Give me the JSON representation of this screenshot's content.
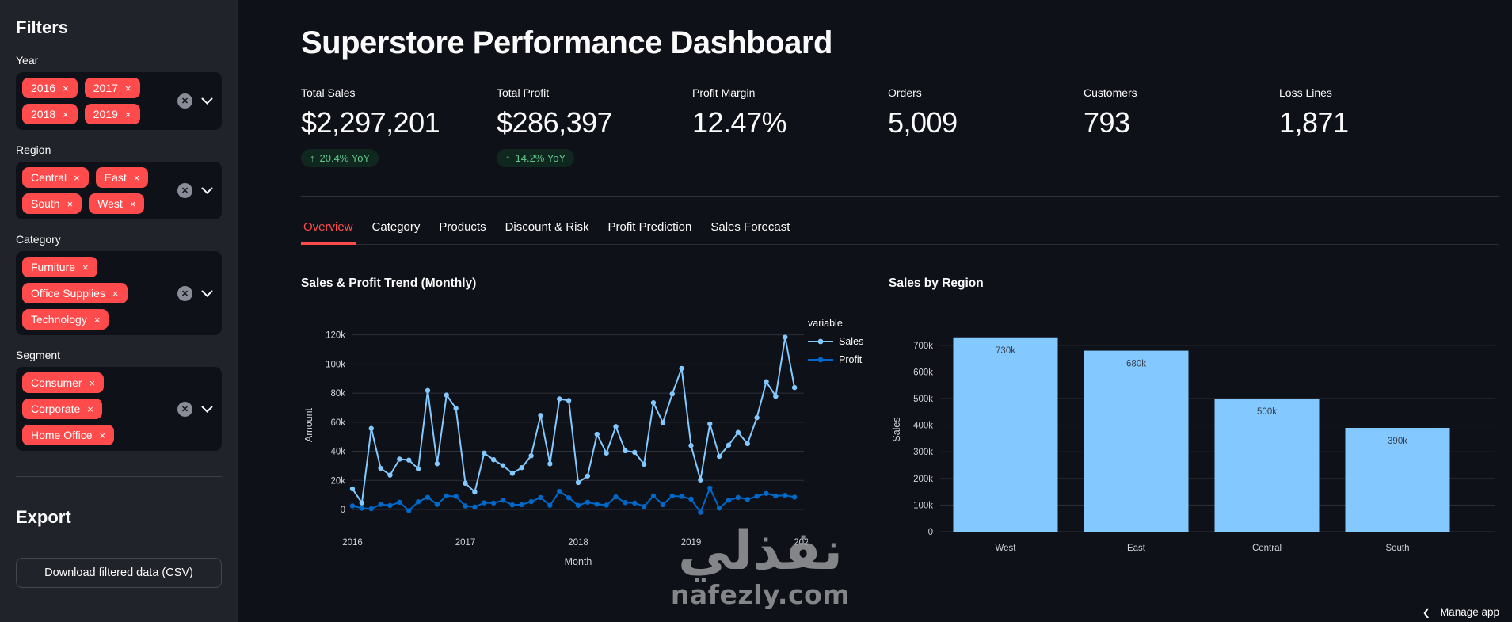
{
  "sidebar": {
    "title": "Filters",
    "filters": [
      {
        "label": "Year",
        "selected": [
          "2016",
          "2017",
          "2018",
          "2019"
        ],
        "per_row": 2
      },
      {
        "label": "Region",
        "selected": [
          "Central",
          "East",
          "South",
          "West"
        ],
        "per_row": 2
      },
      {
        "label": "Category",
        "selected": [
          "Furniture",
          "Office Supplies",
          "Technology"
        ],
        "per_row": 1
      },
      {
        "label": "Segment",
        "selected": [
          "Consumer",
          "Corporate",
          "Home Office"
        ],
        "per_row": 1
      }
    ],
    "export": {
      "title": "Export",
      "button_label": "Download filtered data (CSV)"
    }
  },
  "header": {
    "title": "Superstore Performance Dashboard"
  },
  "kpis": [
    {
      "label": "Total Sales",
      "value": "$2,297,201",
      "delta": "20.4% YoY",
      "delta_arrow": "↑"
    },
    {
      "label": "Total Profit",
      "value": "$286,397",
      "delta": "14.2% YoY",
      "delta_arrow": "↑"
    },
    {
      "label": "Profit Margin",
      "value": "12.47%"
    },
    {
      "label": "Orders",
      "value": "5,009"
    },
    {
      "label": "Customers",
      "value": "793"
    },
    {
      "label": "Loss Lines",
      "value": "1,871"
    }
  ],
  "tabs": [
    {
      "label": "Overview",
      "active": true
    },
    {
      "label": "Category",
      "active": false
    },
    {
      "label": "Products",
      "active": false
    },
    {
      "label": "Discount & Risk",
      "active": false
    },
    {
      "label": "Profit Prediction",
      "active": false
    },
    {
      "label": "Sales Forecast",
      "active": false
    }
  ],
  "colors": {
    "accent_red": "#ff4b4b",
    "sales_line": "#83c9ff",
    "profit_line": "#0068c9",
    "bar_fill": "#83c9ff",
    "delta_green": "#63c78c",
    "grid": "#2d3039",
    "tick_text": "#cfd2d9",
    "bar_label_text": "#3a4150"
  },
  "chart_data": [
    {
      "type": "line",
      "title": "Sales & Profit Trend (Monthly)",
      "xlabel": "Month",
      "ylabel": "Amount",
      "legend_title": "variable",
      "legend_position": "right",
      "grid": "horizontal",
      "x_range_note": "48 monthly points, Jan 2016 - Dec 2019",
      "x_tick_labels": [
        "2016",
        "2017",
        "2018",
        "2019",
        "2020"
      ],
      "x_tick_month_index": [
        0,
        12,
        24,
        36,
        48
      ],
      "y_tick_labels": [
        "0",
        "20k",
        "40k",
        "60k",
        "80k",
        "100k",
        "120k"
      ],
      "y_tick_values": [
        0,
        20000,
        40000,
        60000,
        80000,
        100000,
        120000
      ],
      "ylim": [
        -12000,
        128000
      ],
      "series": [
        {
          "name": "Sales",
          "color": "#83c9ff",
          "values": [
            14200,
            4520,
            55700,
            28300,
            23650,
            34600,
            33950,
            27900,
            81780,
            31450,
            78630,
            69550,
            18070,
            11950,
            38730,
            34200,
            30130,
            24800,
            28770,
            36900,
            64600,
            31400,
            75970,
            74920,
            18540,
            22980,
            51720,
            38750,
            56990,
            40340,
            39260,
            31120,
            73410,
            59690,
            79410,
            97000,
            43970,
            20300,
            58870,
            36520,
            44260,
            52980,
            45260,
            63120,
            87870,
            77780,
            118450,
            83830
          ]
        },
        {
          "name": "Profit",
          "color": "#0068c9",
          "values": [
            2450,
            860,
            500,
            3490,
            2740,
            4980,
            -840,
            5320,
            8330,
            3450,
            9290,
            8980,
            2430,
            1680,
            4590,
            4390,
            6360,
            3150,
            3290,
            5360,
            8210,
            2820,
            12470,
            8020,
            2820,
            5000,
            3610,
            2980,
            8660,
            4750,
            4430,
            2060,
            9330,
            3300,
            9220,
            8980,
            7140,
            -2000,
            14750,
            930,
            6340,
            8220,
            6950,
            9040,
            10990,
            9280,
            9690,
            8480
          ]
        }
      ]
    },
    {
      "type": "bar",
      "title": "Sales by Region",
      "xlabel": "",
      "ylabel": "Sales",
      "grid": "horizontal",
      "categories": [
        "West",
        "East",
        "Central",
        "South"
      ],
      "values": [
        730000,
        680000,
        500000,
        390000
      ],
      "bar_labels": [
        "730k",
        "680k",
        "500k",
        "390k"
      ],
      "y_tick_labels": [
        "0",
        "100k",
        "200k",
        "300k",
        "400k",
        "500k",
        "600k",
        "700k"
      ],
      "y_tick_values": [
        0,
        100000,
        200000,
        300000,
        400000,
        500000,
        600000,
        700000
      ],
      "ylim": [
        0,
        768000
      ]
    }
  ],
  "watermark": {
    "line1": "نفذلي",
    "line2": "nafezly.com"
  },
  "footer": {
    "manage_app": "Manage app",
    "chevron": "❮"
  }
}
